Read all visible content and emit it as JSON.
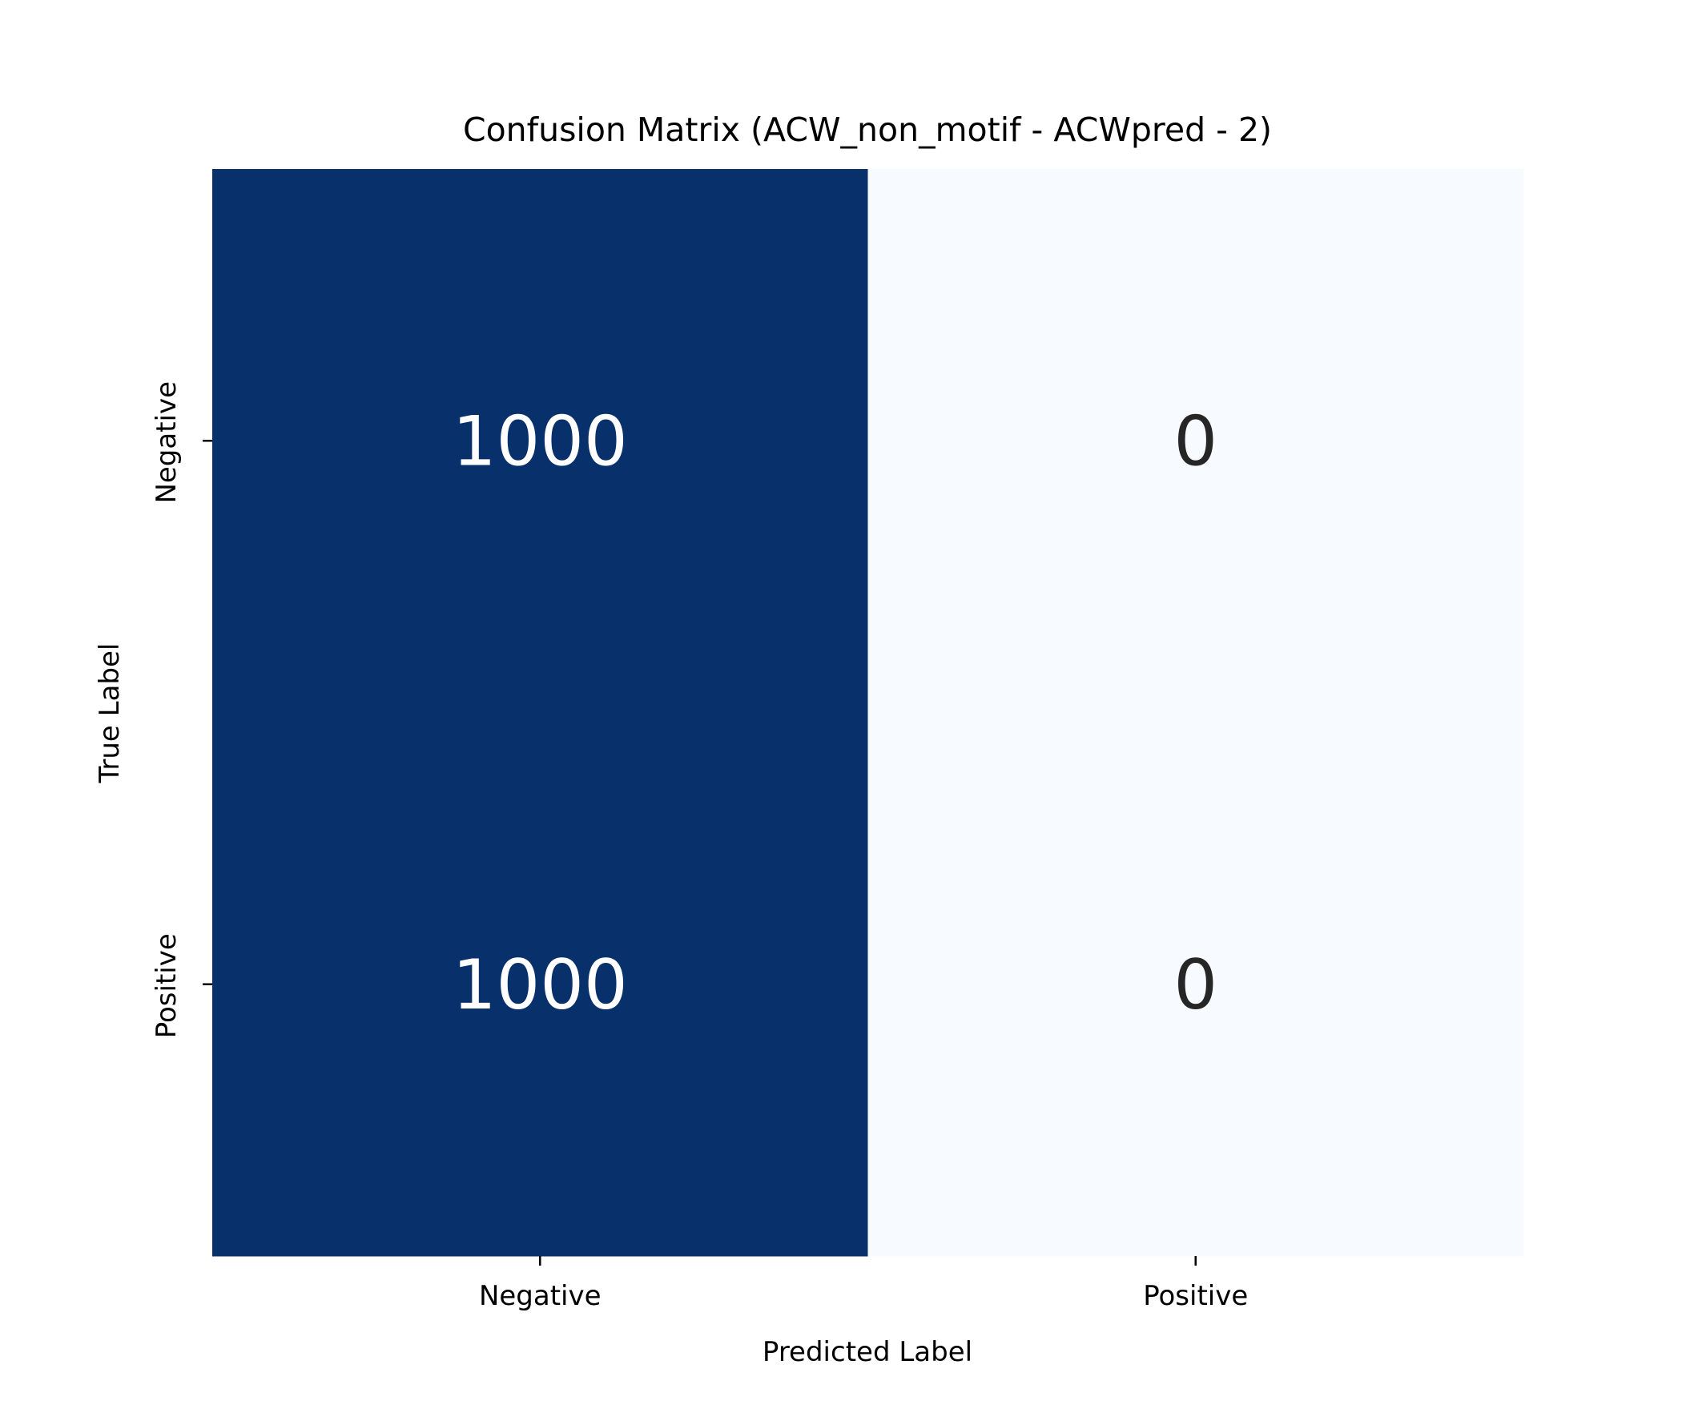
{
  "chart_data": {
    "type": "heatmap",
    "title": "Confusion Matrix (ACW_non_motif - ACWpred - 2)",
    "xlabel": "Predicted Label",
    "ylabel": "True Label",
    "x_categories": [
      "Negative",
      "Positive"
    ],
    "y_categories": [
      "Negative",
      "Positive"
    ],
    "values": [
      [
        1000,
        0
      ],
      [
        1000,
        0
      ]
    ],
    "colormap": "Blues",
    "color_range": [
      0,
      1000
    ],
    "colors": {
      "high": "#08306b",
      "low": "#f7fbff",
      "text_on_dark": "#ffffff",
      "text_on_light": "#262626",
      "axis_text": "#000000"
    },
    "grid": false,
    "colorbar": false
  }
}
